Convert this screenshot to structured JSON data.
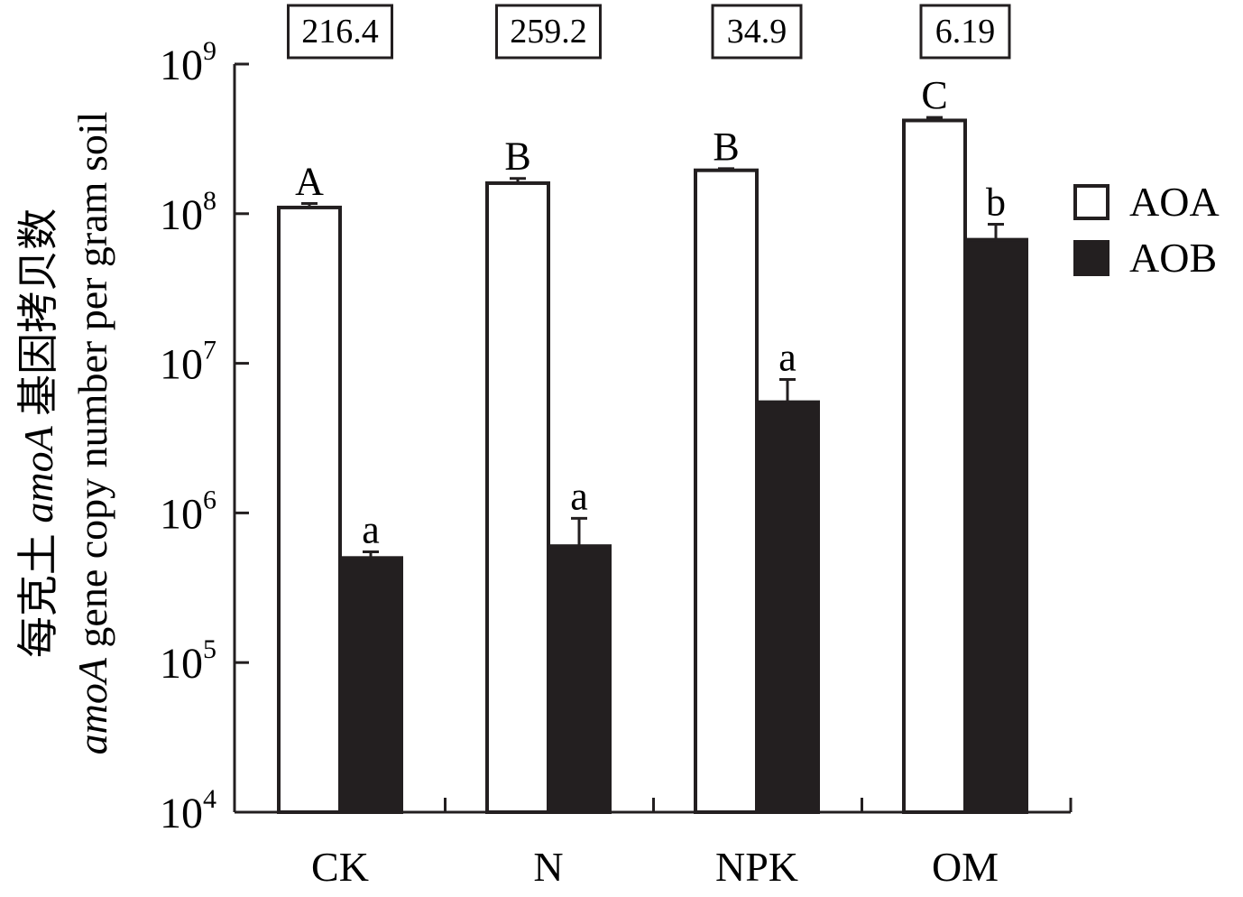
{
  "chart_data": {
    "type": "bar",
    "title": "",
    "xlabel": "",
    "ylabel_cn_prefix": "每克土 ",
    "ylabel_cn_italic": "amoA",
    "ylabel_cn_suffix": " 基因拷贝数",
    "ylabel_en_italic": "amoA",
    "ylabel_en_suffix": " gene copy number per gram soil",
    "yscale": "log",
    "ylim": [
      10000,
      1000000000
    ],
    "yticks": [
      {
        "value": 10000,
        "base": "10",
        "exp": "4"
      },
      {
        "value": 100000,
        "base": "10",
        "exp": "5"
      },
      {
        "value": 1000000,
        "base": "10",
        "exp": "6"
      },
      {
        "value": 10000000,
        "base": "10",
        "exp": "7"
      },
      {
        "value": 100000000,
        "base": "10",
        "exp": "8"
      },
      {
        "value": 1000000000,
        "base": "10",
        "exp": "9"
      }
    ],
    "categories": [
      "CK",
      "N",
      "NPK",
      "OM"
    ],
    "ratios": [
      "216.4",
      "259.2",
      "34.9",
      "6.19"
    ],
    "legend_position": "right",
    "series": [
      {
        "name": "AOA",
        "color": "#ffffff",
        "values": [
          110000000,
          160000000,
          195000000,
          420000000
        ],
        "error_upper": [
          117000000,
          172000000,
          200000000,
          440000000
        ],
        "letters": [
          "A",
          "B",
          "B",
          "C"
        ]
      },
      {
        "name": "AOB",
        "color": "#231f20",
        "values": [
          500000,
          600000,
          5500000,
          67000000
        ],
        "error_upper": [
          550000,
          920000,
          7800000,
          85000000
        ],
        "letters": [
          "a",
          "a",
          "a",
          "b"
        ]
      }
    ]
  }
}
